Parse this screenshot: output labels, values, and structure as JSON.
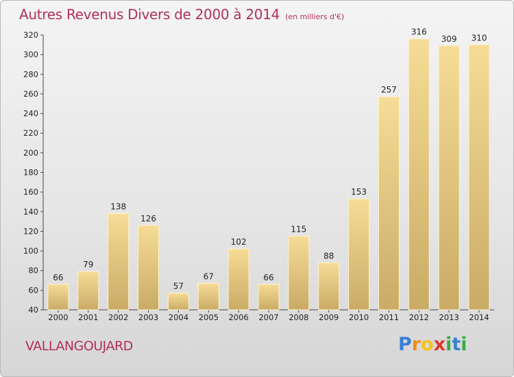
{
  "header": {
    "title": "Autres Revenus Divers de 2000 à 2014",
    "unit": "(en milliers d'€)"
  },
  "footer": {
    "place": "VALLANGOUJARD",
    "logo": [
      "P",
      "r",
      "o",
      "x",
      "i",
      "t",
      "i"
    ],
    "logo_colors": [
      "#3a7fd5",
      "#f08a1c",
      "#f3c21b",
      "#d93a2a",
      "#3aa84a",
      "#3a7fd5",
      "#3aa84a"
    ]
  },
  "chart_data": {
    "type": "bar",
    "title": "Autres Revenus Divers de 2000 à 2014",
    "subtitle": "(en milliers d'€)",
    "categories": [
      "2000",
      "2001",
      "2002",
      "2003",
      "2004",
      "2005",
      "2006",
      "2007",
      "2008",
      "2009",
      "2010",
      "2011",
      "2012",
      "2013",
      "2014"
    ],
    "values": [
      66,
      79,
      138,
      126,
      57,
      67,
      102,
      66,
      115,
      88,
      153,
      257,
      316,
      309,
      310
    ],
    "ylim": [
      40,
      320
    ],
    "yticks": [
      40,
      60,
      80,
      100,
      120,
      140,
      160,
      180,
      200,
      220,
      240,
      260,
      280,
      300,
      320
    ],
    "grid": false,
    "bar_color": "#e8c87a"
  }
}
